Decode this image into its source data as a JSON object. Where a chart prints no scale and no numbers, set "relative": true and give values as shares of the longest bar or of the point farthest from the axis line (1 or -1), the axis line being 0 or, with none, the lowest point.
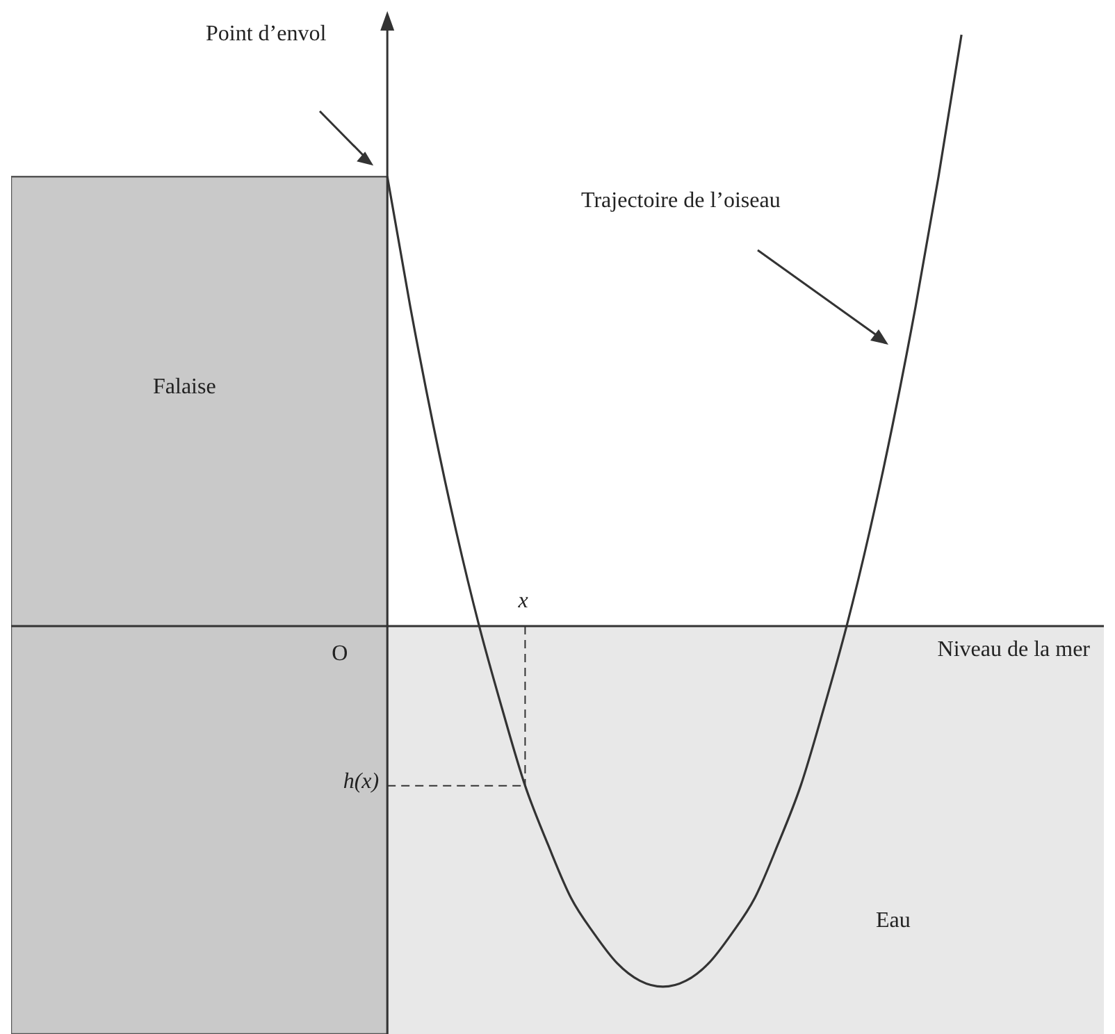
{
  "chart_data": {
    "type": "line",
    "relative": true,
    "categories": [
      null,
      null,
      null,
      null,
      null,
      null,
      null,
      null,
      null,
      null,
      null,
      null,
      null,
      null,
      null,
      null,
      null,
      null,
      null,
      null,
      null,
      null,
      null,
      null,
      null,
      null
    ],
    "series": [
      {
        "color": "#333333",
        "values": [
          0.76,
          0.54,
          0.34,
          0.16,
          0,
          -0.14,
          -0.27,
          -0.37,
          -0.46,
          -0.52,
          -0.57,
          -0.6,
          -0.61,
          -0.6,
          -0.57,
          -0.52,
          -0.46,
          -0.37,
          -0.27,
          -0.14,
          0,
          0.16,
          0.34,
          0.54,
          0.76,
          1
        ]
      }
    ],
    "marker": "none",
    "line_style": "solid",
    "ref_lines": [
      {
        "axis": "y",
        "value": 0,
        "label": "Niveau de la mer"
      }
    ],
    "annotations": [
      "Point d’envol",
      "Trajectoire de l’oiseau",
      "Falaise",
      "Eau",
      "O",
      "x",
      "h(x)"
    ]
  }
}
